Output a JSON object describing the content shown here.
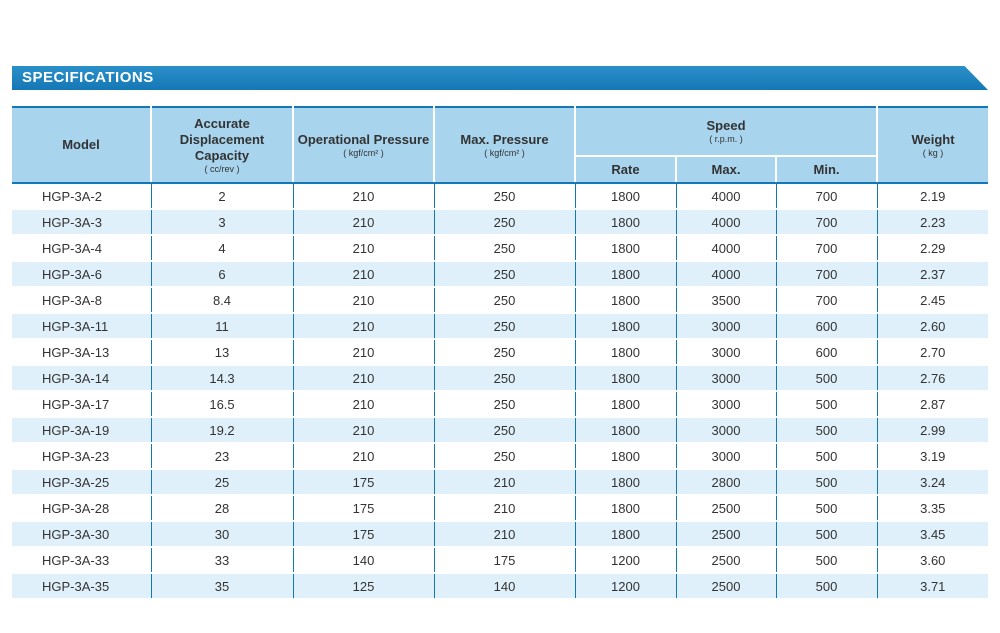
{
  "title": "SPECIFICATIONS",
  "headers": {
    "model": "Model",
    "displacement": "Accurate Displacement Capacity",
    "displacement_unit": "( cc/rev )",
    "operational_pressure": "Operational Pressure",
    "operational_pressure_unit": "( kgf/cm² )",
    "max_pressure": "Max. Pressure",
    "max_pressure_unit": "( kgf/cm² )",
    "speed": "Speed",
    "speed_unit": "( r.p.m. )",
    "rate": "Rate",
    "max": "Max.",
    "min": "Min.",
    "weight": "Weight",
    "weight_unit": "( kg )"
  },
  "rows": [
    [
      "HGP-3A-2",
      "2",
      "210",
      "250",
      "1800",
      "4000",
      "700",
      "2.19"
    ],
    [
      "HGP-3A-3",
      "3",
      "210",
      "250",
      "1800",
      "4000",
      "700",
      "2.23"
    ],
    [
      "HGP-3A-4",
      "4",
      "210",
      "250",
      "1800",
      "4000",
      "700",
      "2.29"
    ],
    [
      "HGP-3A-6",
      "6",
      "210",
      "250",
      "1800",
      "4000",
      "700",
      "2.37"
    ],
    [
      "HGP-3A-8",
      "8.4",
      "210",
      "250",
      "1800",
      "3500",
      "700",
      "2.45"
    ],
    [
      "HGP-3A-11",
      "11",
      "210",
      "250",
      "1800",
      "3000",
      "600",
      "2.60"
    ],
    [
      "HGP-3A-13",
      "13",
      "210",
      "250",
      "1800",
      "3000",
      "600",
      "2.70"
    ],
    [
      "HGP-3A-14",
      "14.3",
      "210",
      "250",
      "1800",
      "3000",
      "500",
      "2.76"
    ],
    [
      "HGP-3A-17",
      "16.5",
      "210",
      "250",
      "1800",
      "3000",
      "500",
      "2.87"
    ],
    [
      "HGP-3A-19",
      "19.2",
      "210",
      "250",
      "1800",
      "3000",
      "500",
      "2.99"
    ],
    [
      "HGP-3A-23",
      "23",
      "210",
      "250",
      "1800",
      "3000",
      "500",
      "3.19"
    ],
    [
      "HGP-3A-25",
      "25",
      "175",
      "210",
      "1800",
      "2800",
      "500",
      "3.24"
    ],
    [
      "HGP-3A-28",
      "28",
      "175",
      "210",
      "1800",
      "2500",
      "500",
      "3.35"
    ],
    [
      "HGP-3A-30",
      "30",
      "175",
      "210",
      "1800",
      "2500",
      "500",
      "3.45"
    ],
    [
      "HGP-3A-33",
      "33",
      "140",
      "175",
      "1200",
      "2500",
      "500",
      "3.60"
    ],
    [
      "HGP-3A-35",
      "35",
      "125",
      "140",
      "1200",
      "2500",
      "500",
      "3.71"
    ]
  ],
  "colors": {
    "banner": "#1578b6",
    "header_bg": "#a8d4ee",
    "stripe": "#dff0fa"
  }
}
